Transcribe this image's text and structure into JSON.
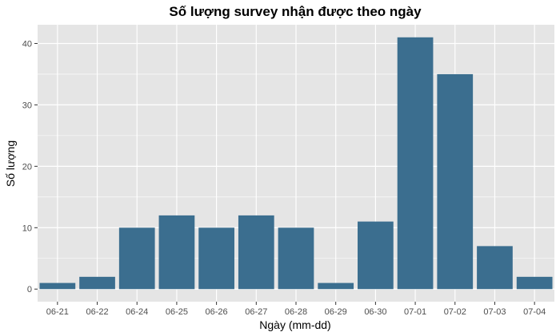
{
  "chart_data": {
    "type": "bar",
    "title": "Số lượng survey nhận được theo ngày",
    "xlabel": "Ngày (mm-dd)",
    "ylabel": "Số lượng",
    "categories": [
      "06-21",
      "06-22",
      "06-24",
      "06-25",
      "06-26",
      "06-27",
      "06-28",
      "06-29",
      "06-30",
      "07-01",
      "07-02",
      "07-03",
      "07-04"
    ],
    "values": [
      1,
      2,
      10,
      12,
      10,
      12,
      10,
      1,
      11,
      41,
      35,
      7,
      2
    ],
    "y_ticks": [
      0,
      10,
      20,
      30,
      40
    ],
    "ylim": [
      -2.05,
      43.05
    ],
    "bar_color": "#3b6e8f",
    "panel_background": "#e5e5e5",
    "grid_color": "#ffffff",
    "grid": true,
    "legend": "none"
  }
}
